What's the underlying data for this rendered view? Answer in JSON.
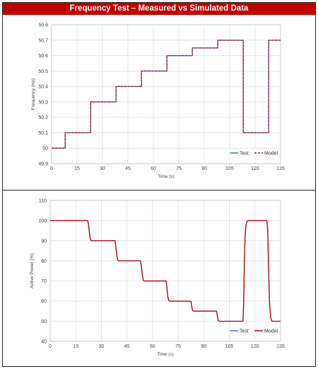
{
  "banner": {
    "title": "Frequency Test – Measured vs Simulated Data",
    "background": "#c00000"
  },
  "colors": {
    "test": "#4472c4",
    "model": "#c00000",
    "grid": "#d9d9d9"
  },
  "chart_data": [
    {
      "type": "line",
      "xlabel": "Time (s)",
      "ylabel": "Frequency (Hz)",
      "xlim": [
        0,
        135
      ],
      "ylim": [
        49.9,
        50.8
      ],
      "xticks": [
        "0",
        "15",
        "30",
        "45",
        "60",
        "75",
        "90",
        "105",
        "120",
        "135"
      ],
      "yticks": [
        "49.9",
        "50",
        "50.1",
        "50.2",
        "50.3",
        "50.4",
        "50.5",
        "50.6",
        "50.7",
        "50.8"
      ],
      "grid": true,
      "legend_position": "bottom-right",
      "series": [
        {
          "name": "Test",
          "style": "solid",
          "x": [
            0,
            8,
            8,
            23,
            23,
            38,
            38,
            53,
            53,
            68,
            68,
            83,
            83,
            98,
            98,
            113,
            113,
            128,
            128,
            135
          ],
          "y": [
            50.0,
            50.0,
            50.1,
            50.1,
            50.3,
            50.3,
            50.4,
            50.4,
            50.5,
            50.5,
            50.6,
            50.6,
            50.65,
            50.65,
            50.7,
            50.7,
            50.1,
            50.1,
            50.7,
            50.7
          ]
        },
        {
          "name": "Model",
          "style": "dashed",
          "x": [
            0,
            8,
            8,
            23,
            23,
            38,
            38,
            53,
            53,
            68,
            68,
            83,
            83,
            98,
            98,
            113,
            113,
            128,
            128,
            135
          ],
          "y": [
            50.0,
            50.0,
            50.1,
            50.1,
            50.3,
            50.3,
            50.4,
            50.4,
            50.5,
            50.5,
            50.6,
            50.6,
            50.65,
            50.65,
            50.7,
            50.7,
            50.1,
            50.1,
            50.7,
            50.7
          ]
        }
      ]
    },
    {
      "type": "line",
      "xlabel": "Time (s)",
      "ylabel": "Active Power (%)",
      "xlim": [
        0,
        135
      ],
      "ylim": [
        40,
        110
      ],
      "xticks": [
        "0",
        "15",
        "30",
        "45",
        "60",
        "75",
        "90",
        "105",
        "120",
        "135"
      ],
      "yticks": [
        "40",
        "50",
        "60",
        "70",
        "80",
        "90",
        "100",
        "110"
      ],
      "grid": true,
      "legend_position": "bottom-right",
      "series": [
        {
          "name": "Test",
          "style": "solid",
          "x": [
            0,
            22,
            22.5,
            23,
            23.5,
            24,
            38,
            38.5,
            39,
            39.5,
            40,
            53,
            53.5,
            54,
            54.5,
            55,
            68,
            68.5,
            69,
            69.5,
            70,
            82.5,
            83,
            83.5,
            84,
            97.5,
            98,
            98.5,
            99,
            113,
            113.4,
            113.8,
            114.2,
            114.7,
            115.3,
            116,
            127,
            127.5,
            128,
            128.6,
            129.3,
            130,
            135
          ],
          "y": [
            100,
            100,
            98,
            94,
            91,
            90,
            90,
            87,
            83,
            80.5,
            80,
            80,
            77,
            73,
            70.5,
            70,
            70,
            66,
            62,
            60.3,
            60,
            60,
            57,
            55.3,
            55,
            55,
            52.5,
            50.5,
            50,
            50,
            60,
            80,
            92,
            97.5,
            99.5,
            100,
            100,
            95,
            75,
            58,
            51.5,
            50,
            50
          ]
        },
        {
          "name": "Model",
          "style": "solid",
          "x": [
            0,
            22,
            22.5,
            23,
            23.5,
            24,
            38,
            38.5,
            39,
            39.5,
            40,
            53,
            53.5,
            54,
            54.5,
            55,
            68,
            68.5,
            69,
            69.5,
            70,
            82.5,
            83,
            83.5,
            84,
            97.5,
            98,
            98.5,
            99,
            113,
            113.4,
            113.8,
            114.2,
            114.7,
            115.3,
            116,
            127,
            127.5,
            128,
            128.6,
            129.3,
            130,
            135
          ],
          "y": [
            100,
            100,
            98,
            94,
            91,
            90,
            90,
            87,
            83,
            80.5,
            80,
            80,
            77,
            73,
            70.5,
            70,
            70,
            66,
            62,
            60.3,
            60,
            60,
            57,
            55.3,
            55,
            55,
            52.5,
            50.5,
            50,
            50,
            60,
            80,
            92,
            97.5,
            99.5,
            100,
            100,
            95,
            75,
            58,
            51.5,
            50,
            50
          ]
        }
      ]
    }
  ]
}
